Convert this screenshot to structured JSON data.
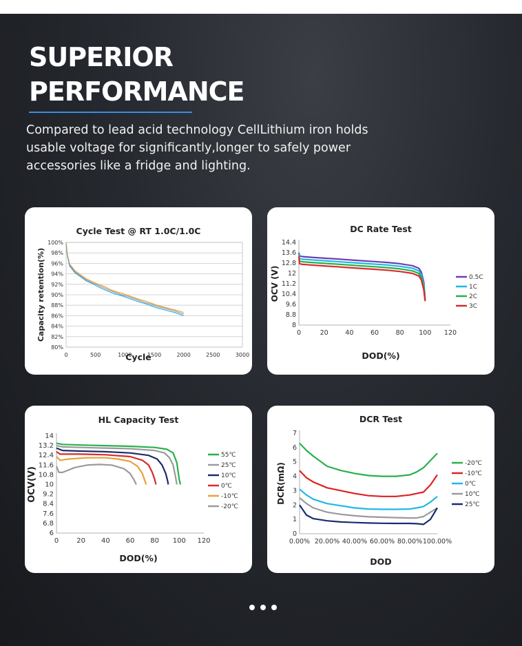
{
  "page": {
    "title_lines": [
      "SUPERIOR",
      "PERFORMANCE"
    ],
    "description": "Compared to lead acid technology CellLithium iron holds usable voltage for significantly,longer to safely power accessories like a fridge and lighting."
  },
  "chart_data": [
    {
      "id": "cycle",
      "type": "line",
      "title": "Cycle Test @ RT 1.0C/1.0C",
      "xlabel": "Cycle",
      "ylabel": "Capacity retention(%)",
      "xlim": [
        0,
        3000
      ],
      "ylim": [
        80,
        100
      ],
      "xticks": [
        "0",
        "500",
        "1000",
        "1500",
        "2000",
        "2500",
        "3000"
      ],
      "xtick_values": [
        0,
        500,
        1000,
        1500,
        2000,
        2500,
        3000
      ],
      "yticks": [
        "80%",
        "82%",
        "84%",
        "86%",
        "88%",
        "90%",
        "92%",
        "94%",
        "96%",
        "98%",
        "100%"
      ],
      "ytick_values": [
        80,
        82,
        84,
        86,
        88,
        90,
        92,
        94,
        96,
        98,
        100
      ],
      "grid": true,
      "legend": "none",
      "series": [
        {
          "color": "#2aa7e6",
          "x": [
            0,
            20,
            60,
            150,
            250,
            350,
            450,
            550,
            650,
            750,
            850,
            950,
            1050,
            1150,
            1250,
            1350,
            1450,
            1550,
            1650,
            1750,
            1850,
            1950,
            2000
          ],
          "y": [
            100,
            97.5,
            95.5,
            94.2,
            93.4,
            92.6,
            92.1,
            91.5,
            91.0,
            90.5,
            90.1,
            89.8,
            89.4,
            89.0,
            88.6,
            88.3,
            87.9,
            87.5,
            87.2,
            86.9,
            86.6,
            86.2,
            86.0
          ]
        },
        {
          "color": "#e8a23a",
          "x": [
            0,
            20,
            60,
            150,
            250,
            350,
            450,
            550,
            650,
            750,
            850,
            950,
            1050,
            1150,
            1250,
            1350,
            1450,
            1550,
            1650,
            1750,
            1850,
            1950,
            2000
          ],
          "y": [
            100,
            97.8,
            95.9,
            94.6,
            93.8,
            93.0,
            92.5,
            92.0,
            91.6,
            91.0,
            90.6,
            90.3,
            89.9,
            89.5,
            89.1,
            88.8,
            88.4,
            88.0,
            87.7,
            87.4,
            87.1,
            86.8,
            86.6
          ]
        },
        {
          "color": "#9a9a9a",
          "x": [
            0,
            20,
            60,
            150,
            250,
            350,
            450,
            550,
            650,
            750,
            850,
            950,
            1050,
            1150,
            1250,
            1350,
            1450,
            1550,
            1650,
            1750,
            1850,
            1950,
            2000
          ],
          "y": [
            99.8,
            97.6,
            95.7,
            94.4,
            93.6,
            92.8,
            92.3,
            91.8,
            91.3,
            90.8,
            90.4,
            90.0,
            89.7,
            89.3,
            88.9,
            88.5,
            88.2,
            87.8,
            87.5,
            87.2,
            86.9,
            86.5,
            86.3
          ]
        }
      ]
    },
    {
      "id": "dcrate",
      "type": "line",
      "title": "DC Rate Test",
      "xlabel": "DOD(%)",
      "ylabel": "OCV (V)",
      "xlim": [
        0,
        120
      ],
      "ylim": [
        8,
        14.4
      ],
      "xticks": [
        "0",
        "20",
        "40",
        "60",
        "80",
        "100",
        "120"
      ],
      "xtick_values": [
        0,
        20,
        40,
        60,
        80,
        100,
        120
      ],
      "yticks": [
        "8",
        "8.8",
        "9.6",
        "10.4",
        "11.2",
        "12",
        "12.8",
        "13.6",
        "14.4"
      ],
      "ytick_values": [
        8,
        8.8,
        9.6,
        10.4,
        11.2,
        12,
        12.8,
        13.6,
        14.4
      ],
      "grid": false,
      "legend": "right",
      "series": [
        {
          "name": "0.5C",
          "color": "#6b3fb3",
          "x": [
            0,
            0.5,
            3,
            10,
            20,
            30,
            40,
            50,
            60,
            70,
            80,
            90,
            95,
            97,
            99,
            100
          ],
          "y": [
            13.6,
            13.35,
            13.3,
            13.25,
            13.18,
            13.12,
            13.05,
            12.98,
            12.92,
            12.85,
            12.75,
            12.6,
            12.4,
            12.1,
            11.3,
            10.0
          ]
        },
        {
          "name": "1C",
          "color": "#1fb8e6",
          "x": [
            0,
            0.5,
            3,
            10,
            20,
            30,
            40,
            50,
            60,
            70,
            80,
            90,
            95,
            97,
            99,
            100
          ],
          "y": [
            13.5,
            13.15,
            13.1,
            13.05,
            12.98,
            12.92,
            12.85,
            12.78,
            12.72,
            12.65,
            12.55,
            12.4,
            12.2,
            11.9,
            11.1,
            9.95
          ]
        },
        {
          "name": "2C",
          "color": "#27b04a",
          "x": [
            0,
            0.5,
            3,
            10,
            20,
            30,
            40,
            50,
            60,
            70,
            80,
            90,
            95,
            97,
            99,
            100
          ],
          "y": [
            13.4,
            12.95,
            12.9,
            12.85,
            12.78,
            12.72,
            12.65,
            12.58,
            12.52,
            12.45,
            12.35,
            12.2,
            12.0,
            11.7,
            10.9,
            9.9
          ]
        },
        {
          "name": "3C",
          "color": "#d92b2b",
          "x": [
            0,
            0.5,
            3,
            10,
            20,
            30,
            40,
            50,
            60,
            70,
            80,
            90,
            95,
            97,
            99,
            100
          ],
          "y": [
            13.3,
            12.75,
            12.7,
            12.65,
            12.58,
            12.52,
            12.45,
            12.38,
            12.32,
            12.25,
            12.15,
            12.0,
            11.8,
            11.5,
            10.7,
            9.85
          ]
        }
      ]
    },
    {
      "id": "hlcap",
      "type": "line",
      "title": "HL Capacity Test",
      "xlabel": "DOD(%)",
      "ylabel": "OCV(V)",
      "xlim": [
        0,
        120
      ],
      "ylim": [
        6,
        14
      ],
      "xticks": [
        "0",
        "20",
        "40",
        "60",
        "80",
        "100",
        "120"
      ],
      "xtick_values": [
        0,
        20,
        40,
        60,
        80,
        100,
        120
      ],
      "yticks": [
        "6",
        "6.8",
        "7.6",
        "8.4",
        "9.2",
        "10",
        "10.8",
        "11.6",
        "12.4",
        "13.2",
        "14"
      ],
      "ytick_values": [
        6,
        6.8,
        7.6,
        8.4,
        9.2,
        10,
        10.8,
        11.6,
        12.4,
        13.2,
        14
      ],
      "grid": false,
      "legend": "right",
      "series": [
        {
          "name": "55℃",
          "color": "#27b04a",
          "x": [
            0,
            5,
            20,
            40,
            60,
            80,
            90,
            95,
            98,
            100,
            101
          ],
          "y": [
            13.4,
            13.3,
            13.25,
            13.2,
            13.15,
            13.05,
            12.9,
            12.6,
            11.8,
            10.4,
            10.0
          ]
        },
        {
          "name": "25℃",
          "color": "#9a9a9a",
          "x": [
            0,
            5,
            20,
            40,
            60,
            80,
            88,
            92,
            95,
            97,
            98
          ],
          "y": [
            13.2,
            13.1,
            13.05,
            13.0,
            12.95,
            12.8,
            12.6,
            12.2,
            11.6,
            10.6,
            10.0
          ]
        },
        {
          "name": "10℃",
          "color": "#1a2b6e",
          "x": [
            0,
            5,
            20,
            40,
            60,
            75,
            82,
            86,
            89,
            90.5,
            91
          ],
          "y": [
            13.0,
            12.8,
            12.75,
            12.7,
            12.6,
            12.4,
            12.1,
            11.6,
            10.9,
            10.3,
            10.0
          ]
        },
        {
          "name": "0℃",
          "color": "#d92b2b",
          "x": [
            0,
            3,
            20,
            40,
            60,
            70,
            75,
            78,
            80,
            81
          ],
          "y": [
            12.7,
            12.5,
            12.5,
            12.45,
            12.3,
            12.0,
            11.6,
            11.0,
            10.4,
            10.0
          ]
        },
        {
          "name": "-10℃",
          "color": "#e8a23a",
          "x": [
            0,
            3,
            10,
            25,
            40,
            50,
            60,
            66,
            70,
            72,
            73
          ],
          "y": [
            12.3,
            12.0,
            12.1,
            12.2,
            12.2,
            12.1,
            11.9,
            11.5,
            10.9,
            10.3,
            10.0
          ]
        },
        {
          "name": "-20℃",
          "color": "#9a9a9a",
          "x": [
            0,
            2,
            5,
            15,
            25,
            35,
            45,
            55,
            60,
            63,
            65
          ],
          "y": [
            11.5,
            11.0,
            11.0,
            11.4,
            11.6,
            11.65,
            11.6,
            11.3,
            10.9,
            10.4,
            10.0
          ]
        }
      ]
    },
    {
      "id": "dcr",
      "type": "line",
      "title": "DCR Test",
      "xlabel": "DOD",
      "ylabel": "DCR(mΩ)",
      "xlim": [
        0,
        100
      ],
      "ylim": [
        0,
        7
      ],
      "xticks": [
        "0.00%",
        "20.00%",
        "40.00%",
        "60.00%",
        "80.00%",
        "100.00%"
      ],
      "xtick_values": [
        0,
        20,
        40,
        60,
        80,
        100
      ],
      "yticks": [
        "0",
        "1",
        "2",
        "3",
        "4",
        "5",
        "6",
        "7"
      ],
      "ytick_values": [
        0,
        1,
        2,
        3,
        4,
        5,
        6,
        7
      ],
      "grid": false,
      "legend": "right",
      "series": [
        {
          "name": "-20℃",
          "color": "#27b04a",
          "x": [
            0,
            5,
            10,
            20,
            30,
            40,
            50,
            60,
            70,
            80,
            85,
            90,
            95,
            100
          ],
          "y": [
            6.3,
            5.8,
            5.4,
            4.7,
            4.4,
            4.2,
            4.05,
            4.0,
            4.0,
            4.1,
            4.3,
            4.6,
            5.1,
            5.6
          ]
        },
        {
          "name": "-10℃",
          "color": "#e02020",
          "x": [
            0,
            5,
            10,
            20,
            30,
            40,
            50,
            60,
            70,
            80,
            85,
            90,
            95,
            100
          ],
          "y": [
            4.4,
            3.9,
            3.6,
            3.2,
            3.0,
            2.8,
            2.65,
            2.6,
            2.6,
            2.7,
            2.8,
            2.9,
            3.4,
            4.1
          ]
        },
        {
          "name": "0℃",
          "color": "#1fb8e6",
          "x": [
            0,
            5,
            10,
            20,
            30,
            40,
            50,
            60,
            70,
            80,
            85,
            90,
            95,
            100
          ],
          "y": [
            3.1,
            2.7,
            2.4,
            2.1,
            1.95,
            1.8,
            1.72,
            1.7,
            1.7,
            1.72,
            1.8,
            1.9,
            2.2,
            2.6
          ]
        },
        {
          "name": "10℃",
          "color": "#9a9a9a",
          "x": [
            0,
            5,
            10,
            20,
            30,
            40,
            50,
            60,
            70,
            80,
            85,
            90,
            95,
            100
          ],
          "y": [
            2.5,
            2.1,
            1.8,
            1.5,
            1.35,
            1.25,
            1.18,
            1.15,
            1.12,
            1.1,
            1.1,
            1.2,
            1.5,
            1.8
          ]
        },
        {
          "name": "25℃",
          "color": "#1a2b6e",
          "x": [
            0,
            5,
            10,
            20,
            30,
            40,
            50,
            60,
            70,
            80,
            85,
            90,
            95,
            100
          ],
          "y": [
            2.0,
            1.3,
            1.05,
            0.9,
            0.82,
            0.78,
            0.75,
            0.73,
            0.72,
            0.72,
            0.7,
            0.65,
            1.0,
            1.8
          ]
        }
      ]
    }
  ]
}
